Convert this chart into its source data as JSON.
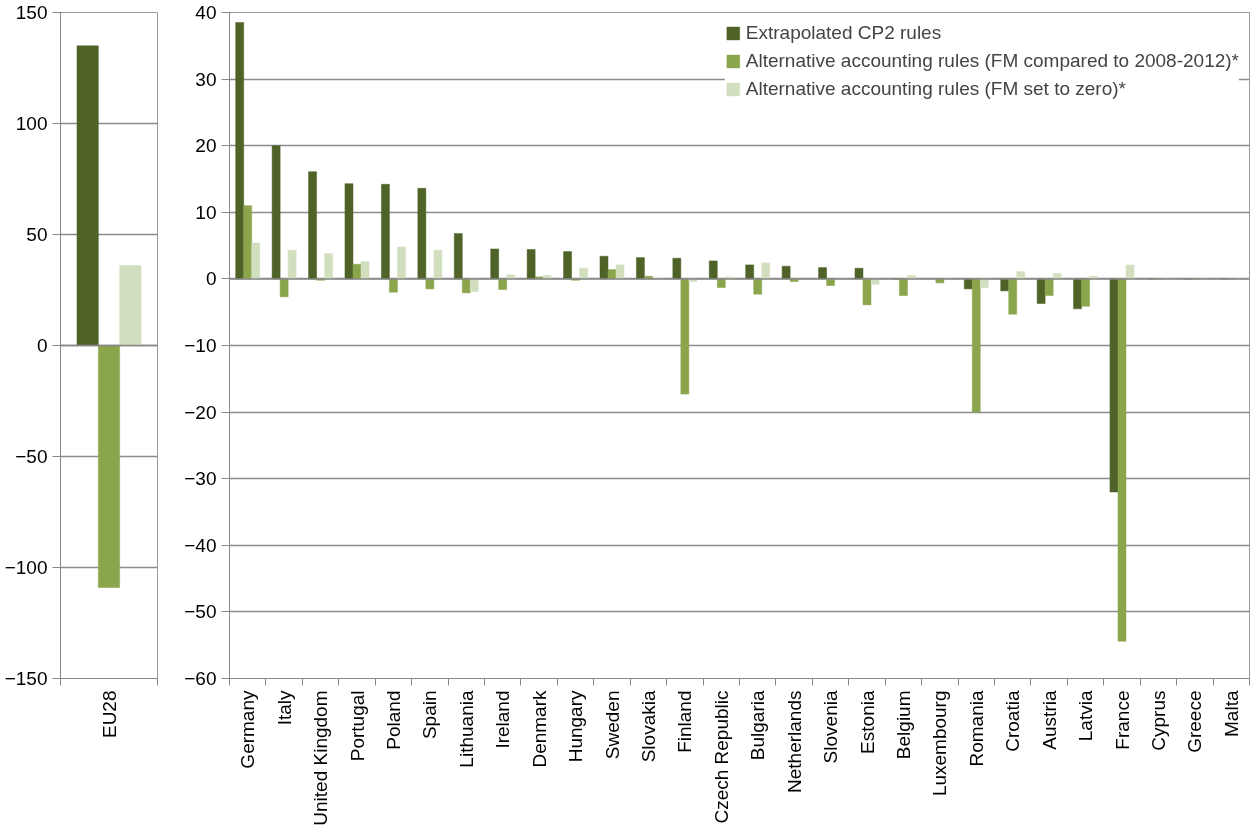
{
  "chart_data": [
    {
      "type": "bar",
      "categories": [
        "EU28"
      ],
      "ylim": [
        -150,
        150
      ],
      "yticks": [
        -150,
        -100,
        -50,
        0,
        50,
        100,
        150
      ],
      "grid": "y",
      "series": [
        {
          "color": "#4f6228",
          "values": [
            135
          ]
        },
        {
          "color": "#8ba54c",
          "values": [
            -109
          ]
        },
        {
          "color": "#d2dfbe",
          "values": [
            36
          ]
        }
      ]
    },
    {
      "type": "bar",
      "categories": [
        "Germany",
        "Italy",
        "United Kingdom",
        "Portugal",
        "Poland",
        "Spain",
        "Lithuania",
        "Ireland",
        "Denmark",
        "Hungary",
        "Sweden",
        "Slovakia",
        "Finland",
        "Czech Republic",
        "Bulgaria",
        "Netherlands",
        "Slovenia",
        "Estonia",
        "Belgium",
        "Luxembourg",
        "Romania",
        "Croatia",
        "Austria",
        "Latvia",
        "France",
        "Cyprus",
        "Greece",
        "Malta"
      ],
      "ylim": [
        -60,
        40
      ],
      "yticks": [
        -60,
        -50,
        -40,
        -30,
        -20,
        -10,
        0,
        10,
        20,
        30,
        40
      ],
      "grid": "y",
      "legend": "top right",
      "series": [
        {
          "name": "Extrapolated CP2 rules",
          "color": "#4f6228",
          "values": [
            38.5,
            20.0,
            16.1,
            14.3,
            14.2,
            13.6,
            6.8,
            4.5,
            4.4,
            4.1,
            3.4,
            3.2,
            3.1,
            2.7,
            2.1,
            1.9,
            1.7,
            1.6,
            0,
            null,
            -1.5,
            -1.8,
            -3.7,
            -4.5,
            -32.0,
            0,
            0,
            0
          ]
        },
        {
          "name": "Alternative accounting rules (FM compared to 2008-2012)*",
          "color": "#8ba54c",
          "values": [
            11.0,
            -2.7,
            -0.2,
            2.2,
            -2.0,
            -1.5,
            -2.1,
            -1.6,
            0.3,
            -0.2,
            1.4,
            0.4,
            -17.3,
            -1.3,
            -2.3,
            -0.4,
            -1.0,
            -3.9,
            -2.5,
            -0.6,
            -20.0,
            -5.3,
            -2.5,
            -4.1,
            -54.4,
            0,
            0,
            0
          ]
        },
        {
          "name": "Alternative accounting rules (FM set to zero)*",
          "color": "#d2dfbe",
          "values": [
            5.4,
            4.3,
            3.8,
            2.6,
            4.8,
            4.3,
            -1.9,
            0.6,
            0.5,
            1.6,
            2.1,
            0,
            -0.4,
            0.3,
            2.4,
            null,
            0,
            -0.8,
            0.5,
            0,
            -1.3,
            1.1,
            0.8,
            0.4,
            2.1,
            0,
            0,
            0
          ]
        }
      ]
    }
  ]
}
